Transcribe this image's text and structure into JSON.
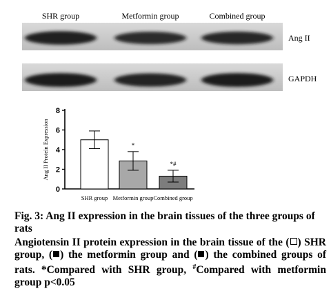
{
  "blot": {
    "lanes": [
      "SHR group",
      "Metformin group",
      "Combined group"
    ],
    "rows": [
      {
        "label": "Ang II",
        "intensity": [
          0.95,
          0.75,
          0.8
        ]
      },
      {
        "label": "GAPDH",
        "intensity": [
          1.0,
          0.9,
          1.0
        ]
      }
    ],
    "colors": {
      "background": "#cfcfcf",
      "band": "#1a1a1a"
    }
  },
  "chart_data": {
    "type": "bar",
    "categories": [
      "SHR group",
      "Metformin group",
      "Combined group"
    ],
    "values": [
      5.0,
      2.85,
      1.3
    ],
    "errors": [
      0.9,
      0.95,
      0.6
    ],
    "annotations": [
      "",
      "*",
      "*#"
    ],
    "ylabel": "Ang II Protein Expression",
    "ylim": [
      0,
      8
    ],
    "yticks": [
      0,
      2,
      4,
      6,
      8
    ],
    "grid": false,
    "bar_colors": [
      "#ffffff",
      "#a8a8a8",
      "#7d7d7d"
    ]
  },
  "caption": {
    "title": "Fig. 3: Ang II expression in the brain tissues of the three groups of rats",
    "body_part1": "Angiotensin II protein expression in the brain tissue of the (",
    "body_part2": ") SHR group, (",
    "body_part3": ") the metformin group and (",
    "body_part4": ") the combined groups of rats.  *Compared with SHR group, ",
    "hash_superscript": "#",
    "body_part5": "Compared with metformin group p<0.05"
  }
}
